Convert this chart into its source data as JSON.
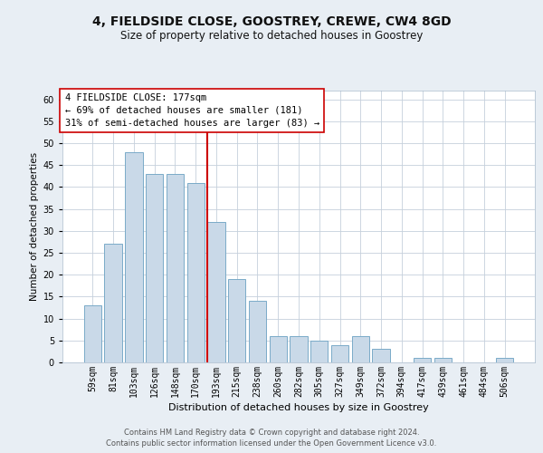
{
  "title": "4, FIELDSIDE CLOSE, GOOSTREY, CREWE, CW4 8GD",
  "subtitle": "Size of property relative to detached houses in Goostrey",
  "xlabel": "Distribution of detached houses by size in Goostrey",
  "ylabel": "Number of detached properties",
  "bins": [
    "59sqm",
    "81sqm",
    "103sqm",
    "126sqm",
    "148sqm",
    "170sqm",
    "193sqm",
    "215sqm",
    "238sqm",
    "260sqm",
    "282sqm",
    "305sqm",
    "327sqm",
    "349sqm",
    "372sqm",
    "394sqm",
    "417sqm",
    "439sqm",
    "461sqm",
    "484sqm",
    "506sqm"
  ],
  "values": [
    13,
    27,
    48,
    43,
    43,
    41,
    32,
    19,
    14,
    6,
    6,
    5,
    4,
    6,
    3,
    0,
    1,
    1,
    0,
    0,
    1
  ],
  "bar_color": "#c9d9e8",
  "bar_edge_color": "#7aaac8",
  "vline_bin_index": 6,
  "vline_color": "#cc0000",
  "annotation_line1": "4 FIELDSIDE CLOSE: 177sqm",
  "annotation_line2": "← 69% of detached houses are smaller (181)",
  "annotation_line3": "31% of semi-detached houses are larger (83) →",
  "annotation_box_edge_color": "#cc0000",
  "ylim_max": 62,
  "ytick_max": 60,
  "ytick_step": 5,
  "bg_color": "#e8eef4",
  "plot_bg_color": "#ffffff",
  "grid_color": "#c5d0dc",
  "title_fontsize": 10,
  "subtitle_fontsize": 8.5,
  "xlabel_fontsize": 8,
  "ylabel_fontsize": 7.5,
  "tick_fontsize": 7,
  "annotation_fontsize": 7.5,
  "footer_fontsize": 6,
  "footer_text": "Contains HM Land Registry data © Crown copyright and database right 2024.\nContains public sector information licensed under the Open Government Licence v3.0."
}
